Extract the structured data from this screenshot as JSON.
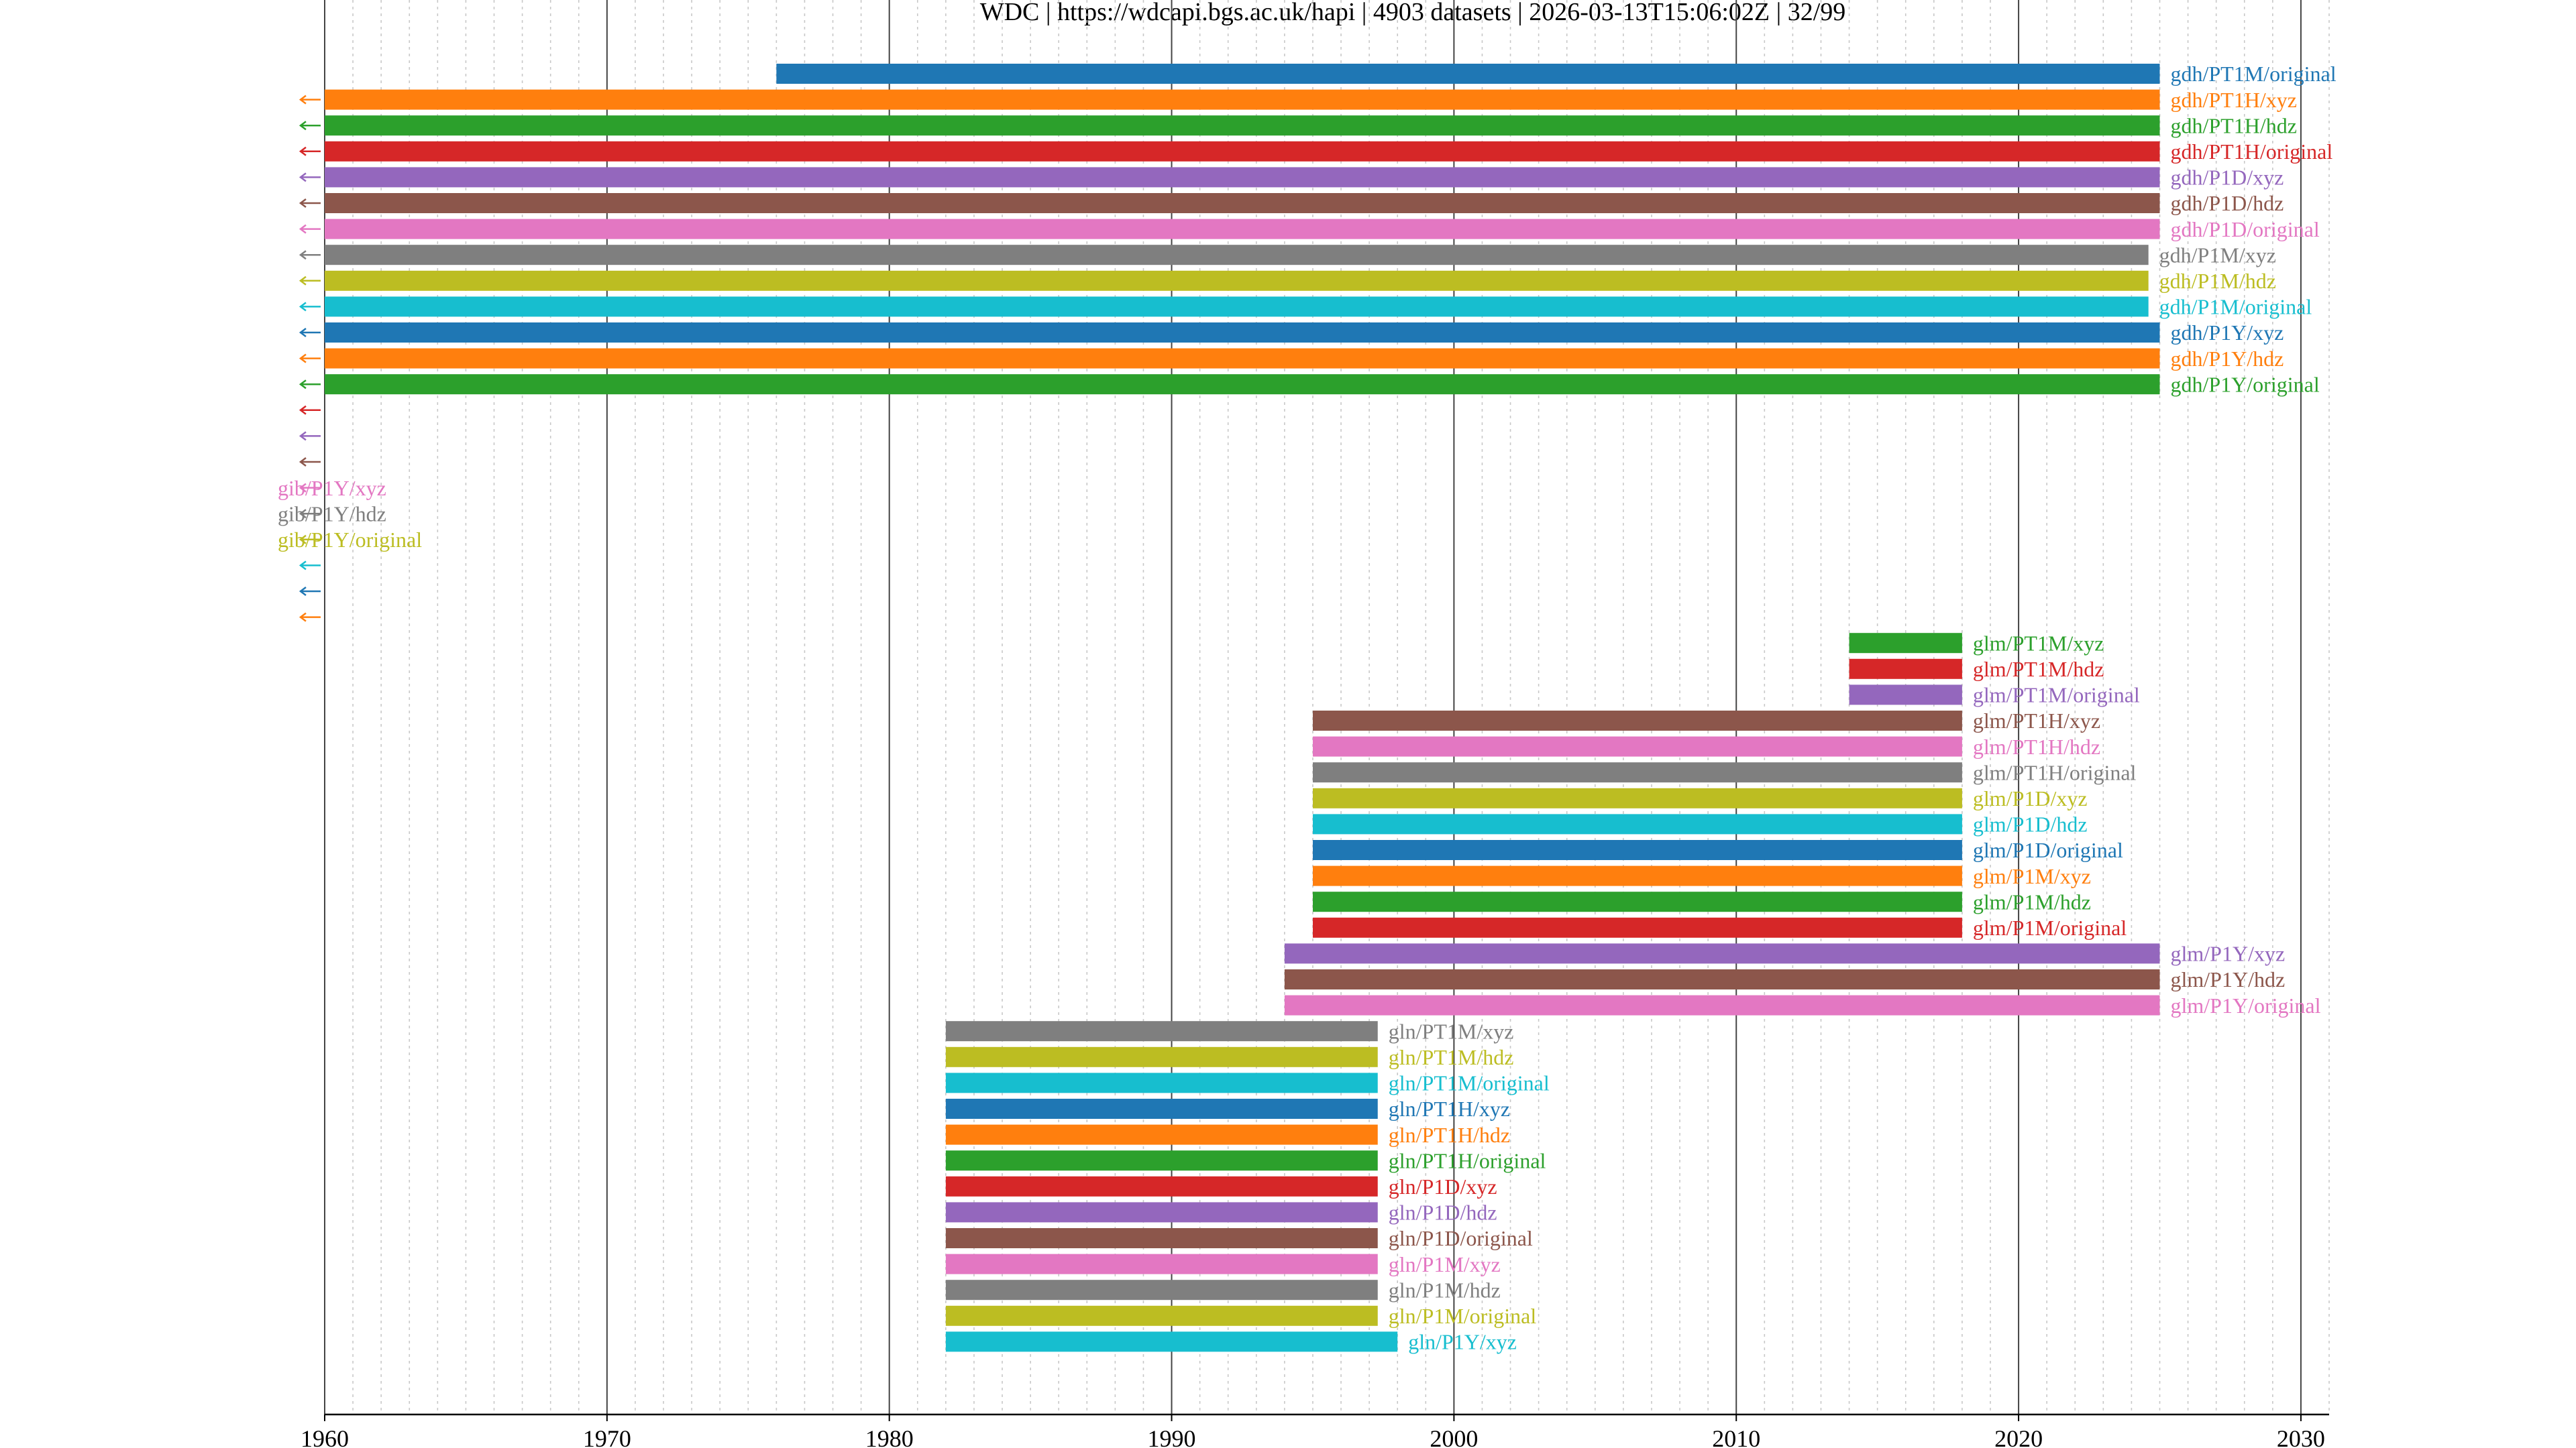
{
  "chart_data": {
    "type": "bar",
    "subtype": "horizontal-timeline",
    "title": "WDC | https://wdcapi.bgs.ac.uk/hapi | 4903 datasets | 2026-03-13T15:06:02Z | 32/99",
    "xlabel": "",
    "ylabel": "",
    "xlim": [
      1960,
      2031
    ],
    "x_ticks": [
      1960,
      1970,
      1980,
      1990,
      2000,
      2010,
      2020,
      2030
    ],
    "grid": "major solid, minor dotted each year",
    "legend": "none (labels at bar ends)",
    "palette": [
      "#1f77b4",
      "#ff7f0e",
      "#2ca02c",
      "#d62728",
      "#9467bd",
      "#8c564b",
      "#e377c2",
      "#7f7f7f",
      "#bcbd22",
      "#17becf"
    ],
    "series": [
      {
        "name": "gdh/PT1M/original",
        "start": 1976.0,
        "end": 2025.0
      },
      {
        "name": "gdh/PT1H/xyz",
        "start": 1960.0,
        "end": 2025.0,
        "truncated_left": true
      },
      {
        "name": "gdh/PT1H/hdz",
        "start": 1960.0,
        "end": 2025.0,
        "truncated_left": true
      },
      {
        "name": "gdh/PT1H/original",
        "start": 1960.0,
        "end": 2025.0,
        "truncated_left": true
      },
      {
        "name": "gdh/P1D/xyz",
        "start": 1960.0,
        "end": 2025.0,
        "truncated_left": true
      },
      {
        "name": "gdh/P1D/hdz",
        "start": 1960.0,
        "end": 2025.0,
        "truncated_left": true
      },
      {
        "name": "gdh/P1D/original",
        "start": 1960.0,
        "end": 2025.0,
        "truncated_left": true
      },
      {
        "name": "gdh/P1M/xyz",
        "start": 1960.0,
        "end": 2024.6,
        "truncated_left": true
      },
      {
        "name": "gdh/P1M/hdz",
        "start": 1960.0,
        "end": 2024.6,
        "truncated_left": true
      },
      {
        "name": "gdh/P1M/original",
        "start": 1960.0,
        "end": 2024.6,
        "truncated_left": true
      },
      {
        "name": "gdh/P1Y/xyz",
        "start": 1960.0,
        "end": 2025.0,
        "truncated_left": true
      },
      {
        "name": "gdh/P1Y/hdz",
        "start": 1960.0,
        "end": 2025.0,
        "truncated_left": true
      },
      {
        "name": "gdh/P1Y/original",
        "start": 1960.0,
        "end": 2025.0,
        "truncated_left": true
      },
      {
        "name": "",
        "start": null,
        "end": null,
        "truncated_left": true
      },
      {
        "name": "",
        "start": null,
        "end": null,
        "truncated_left": true
      },
      {
        "name": "",
        "start": null,
        "end": null,
        "truncated_left": true
      },
      {
        "name": "gib/P1Y/xyz",
        "start": null,
        "end": 1960.0,
        "truncated_left": true
      },
      {
        "name": "gib/P1Y/hdz",
        "start": null,
        "end": 1960.0,
        "truncated_left": true
      },
      {
        "name": "gib/P1Y/original",
        "start": null,
        "end": 1960.0,
        "truncated_left": true
      },
      {
        "name": "",
        "start": null,
        "end": null,
        "truncated_left": true
      },
      {
        "name": "",
        "start": null,
        "end": null,
        "truncated_left": true
      },
      {
        "name": "",
        "start": null,
        "end": null,
        "truncated_left": true
      },
      {
        "name": "glm/PT1M/xyz",
        "start": 2014.0,
        "end": 2018.0
      },
      {
        "name": "glm/PT1M/hdz",
        "start": 2014.0,
        "end": 2018.0
      },
      {
        "name": "glm/PT1M/original",
        "start": 2014.0,
        "end": 2018.0
      },
      {
        "name": "glm/PT1H/xyz",
        "start": 1995.0,
        "end": 2018.0
      },
      {
        "name": "glm/PT1H/hdz",
        "start": 1995.0,
        "end": 2018.0
      },
      {
        "name": "glm/PT1H/original",
        "start": 1995.0,
        "end": 2018.0
      },
      {
        "name": "glm/P1D/xyz",
        "start": 1995.0,
        "end": 2018.0
      },
      {
        "name": "glm/P1D/hdz",
        "start": 1995.0,
        "end": 2018.0
      },
      {
        "name": "glm/P1D/original",
        "start": 1995.0,
        "end": 2018.0
      },
      {
        "name": "glm/P1M/xyz",
        "start": 1995.0,
        "end": 2018.0
      },
      {
        "name": "glm/P1M/hdz",
        "start": 1995.0,
        "end": 2018.0
      },
      {
        "name": "glm/P1M/original",
        "start": 1995.0,
        "end": 2018.0
      },
      {
        "name": "glm/P1Y/xyz",
        "start": 1994.0,
        "end": 2025.0
      },
      {
        "name": "glm/P1Y/hdz",
        "start": 1994.0,
        "end": 2025.0
      },
      {
        "name": "glm/P1Y/original",
        "start": 1994.0,
        "end": 2025.0
      },
      {
        "name": "gln/PT1M/xyz",
        "start": 1982.0,
        "end": 1997.3
      },
      {
        "name": "gln/PT1M/hdz",
        "start": 1982.0,
        "end": 1997.3
      },
      {
        "name": "gln/PT1M/original",
        "start": 1982.0,
        "end": 1997.3
      },
      {
        "name": "gln/PT1H/xyz",
        "start": 1982.0,
        "end": 1997.3
      },
      {
        "name": "gln/PT1H/hdz",
        "start": 1982.0,
        "end": 1997.3
      },
      {
        "name": "gln/PT1H/original",
        "start": 1982.0,
        "end": 1997.3
      },
      {
        "name": "gln/P1D/xyz",
        "start": 1982.0,
        "end": 1997.3
      },
      {
        "name": "gln/P1D/hdz",
        "start": 1982.0,
        "end": 1997.3
      },
      {
        "name": "gln/P1D/original",
        "start": 1982.0,
        "end": 1997.3
      },
      {
        "name": "gln/P1M/xyz",
        "start": 1982.0,
        "end": 1997.3
      },
      {
        "name": "gln/P1M/hdz",
        "start": 1982.0,
        "end": 1997.3
      },
      {
        "name": "gln/P1M/original",
        "start": 1982.0,
        "end": 1997.3
      },
      {
        "name": "gln/P1Y/xyz",
        "start": 1982.0,
        "end": 1998.0
      }
    ]
  }
}
